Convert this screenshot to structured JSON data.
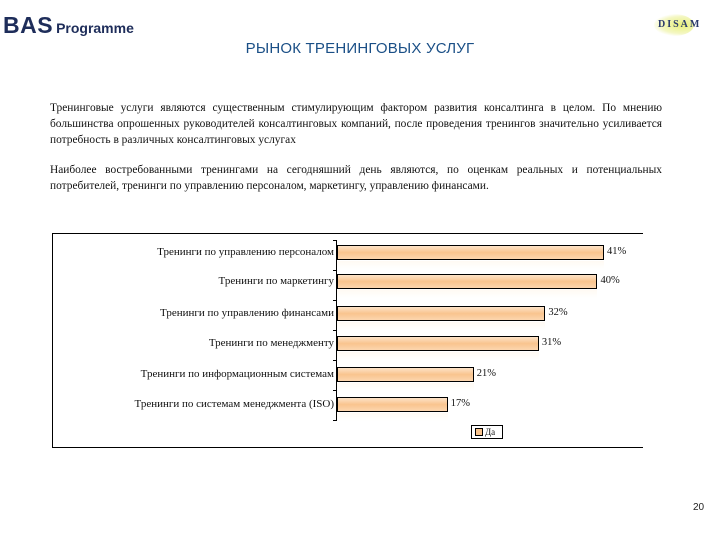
{
  "header": {
    "logo_left_main": "BAS",
    "logo_left_sub": "Programme",
    "logo_right": "DISAM"
  },
  "page": {
    "title": "РЫНОК ТРЕНИНГОВЫХ УСЛУГ",
    "paragraphs": [
      "Тренинговые услуги являются существенным стимулирующим фактором развития консалтинга в целом. По мнению большинства опрошенных руководителей консалтинговых компаний, после проведения тренингов значительно усиливается потребность в различных консалтинговых услугах",
      "Наиболее востребованными тренингами на сегодняшний день являются, по оценкам реальных и потенциальных потребителей, тренинги по управлению персоналом, маркетингу, управлению финансами."
    ],
    "page_number": "20"
  },
  "chart_data": {
    "type": "bar",
    "orientation": "horizontal",
    "title": "",
    "xlabel": "",
    "ylabel": "",
    "categories": [
      "Тренинги по управлению персоналом",
      "Тренинги по маркетингу",
      "Тренинги по управлению финансами",
      "Тренинги по менеджменту",
      "Тренинги по информационным системам",
      "Тренинги по системам менеджмента (ISO)"
    ],
    "series": [
      {
        "name": "Да",
        "values": [
          41,
          40,
          32,
          31,
          21,
          17
        ],
        "color": "#f9c48e"
      }
    ],
    "value_labels": [
      "41%",
      "40%",
      "32%",
      "31%",
      "21%",
      "17%"
    ],
    "xlim": [
      0,
      42
    ],
    "grid": false,
    "legend": {
      "position": "bottom",
      "entries": [
        "Да"
      ]
    }
  }
}
